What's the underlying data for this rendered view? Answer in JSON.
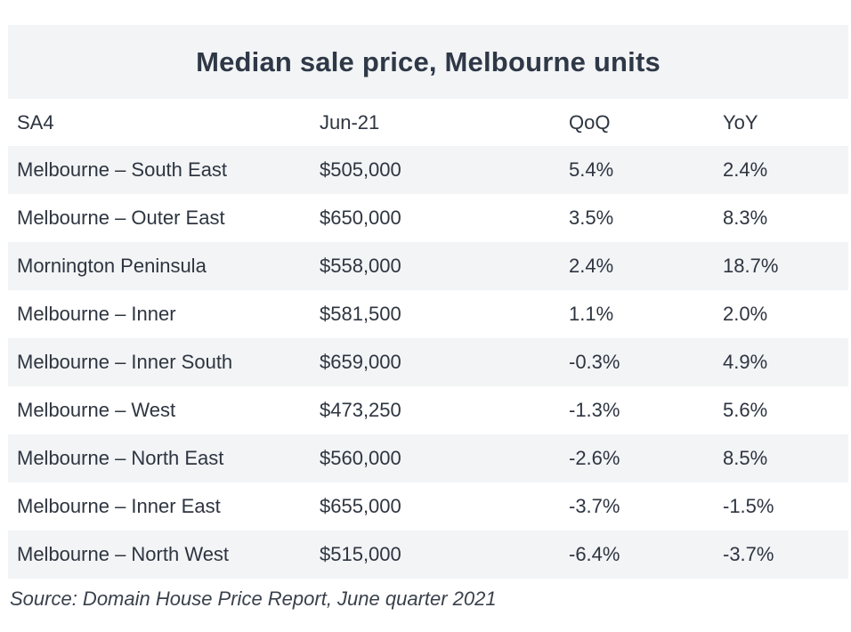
{
  "table": {
    "title": "Median sale price, Melbourne units",
    "headers": [
      "SA4",
      "Jun-21",
      "QoQ",
      "YoY"
    ],
    "rows": [
      [
        "Melbourne – South East",
        "$505,000",
        "5.4%",
        "2.4%"
      ],
      [
        "Melbourne – Outer East",
        "$650,000",
        "3.5%",
        "8.3%"
      ],
      [
        "Mornington Peninsula",
        "$558,000",
        "2.4%",
        "18.7%"
      ],
      [
        "Melbourne – Inner",
        "$581,500",
        "1.1%",
        "2.0%"
      ],
      [
        "Melbourne – Inner South",
        "$659,000",
        "-0.3%",
        "4.9%"
      ],
      [
        "Melbourne – West",
        "$473,250",
        "-1.3%",
        "5.6%"
      ],
      [
        "Melbourne – North East",
        "$560,000",
        "-2.6%",
        "8.5%"
      ],
      [
        "Melbourne – Inner East",
        "$655,000",
        "-3.7%",
        "-1.5%"
      ],
      [
        "Melbourne – North West",
        "$515,000",
        "-6.4%",
        "-3.7%"
      ]
    ]
  },
  "source": "Source: Domain House Price Report, June quarter 2021",
  "colors": {
    "shaded_row": "#f2f4f6",
    "text": "#2e3540"
  }
}
